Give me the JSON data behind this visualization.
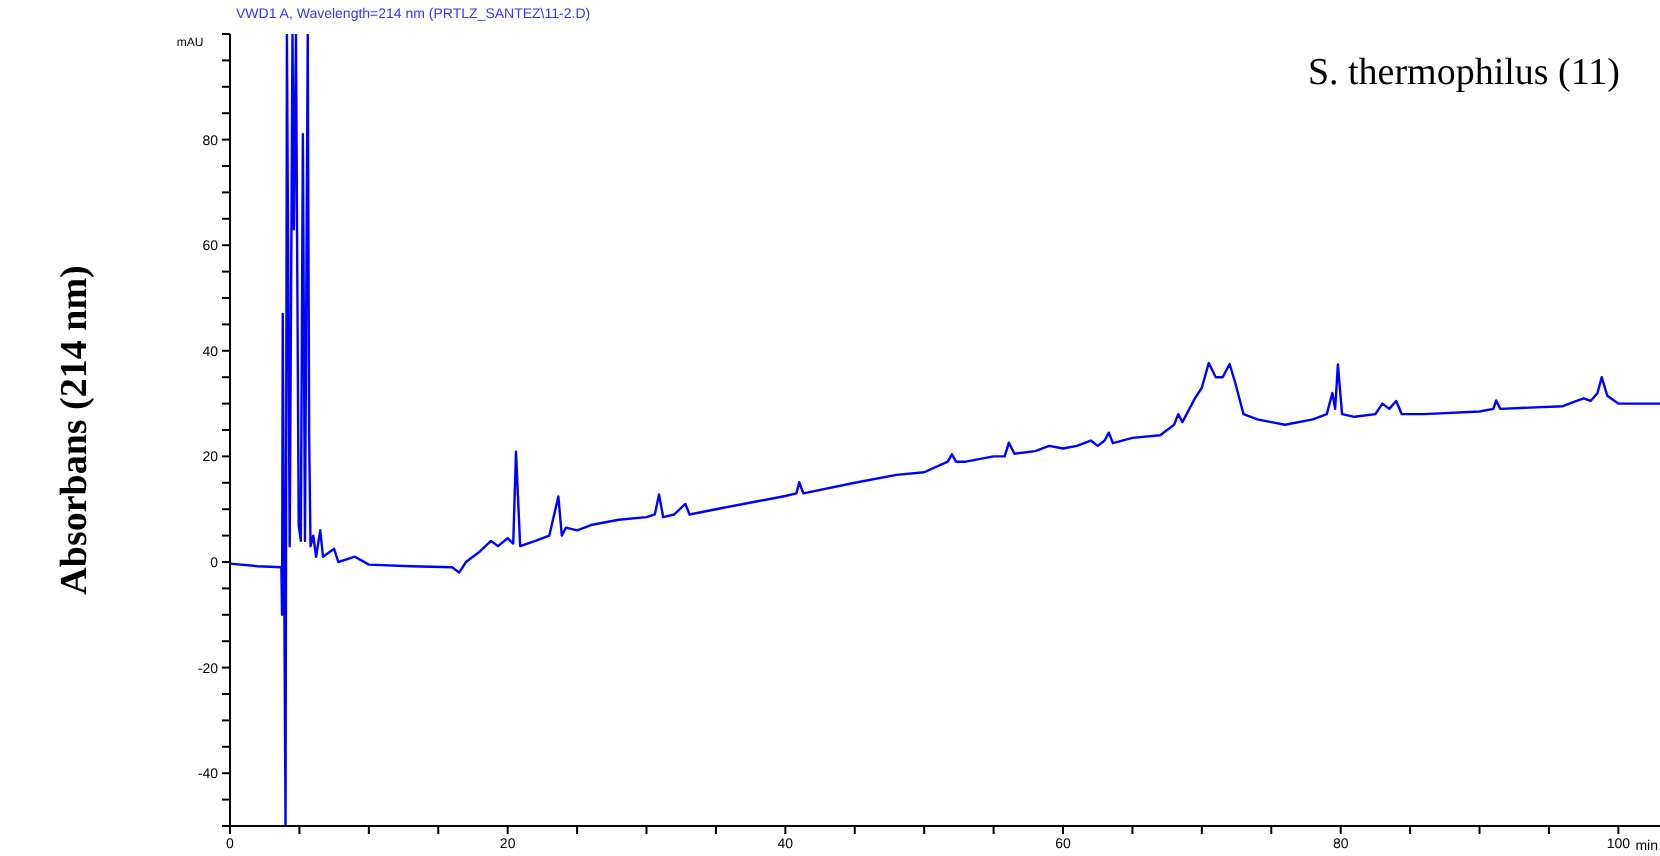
{
  "chart_data": {
    "type": "line",
    "title": "S. thermophilus (11)",
    "xlabel": "min",
    "ylabel": "Absorbans (214 nm)",
    "annotations": [
      "VWD1 A, Wavelength=214 nm (PRTLZ_SANTEZ\\11-2.D)",
      "mAU"
    ],
    "x": [
      0,
      2,
      3.7,
      3.75,
      3.8,
      3.85,
      3.9,
      4.0,
      4.1,
      4.3,
      4.5,
      4.6,
      4.75,
      4.95,
      5.1,
      5.25,
      5.4,
      5.6,
      5.7,
      5.8,
      6.0,
      6.2,
      6.5,
      6.7,
      7.5,
      7.8,
      9,
      10,
      13,
      16,
      16.5,
      17,
      18,
      18.8,
      19.3,
      20,
      20.4,
      20.6,
      20.9,
      22,
      23,
      23.65,
      23.9,
      24.2,
      25,
      26,
      28,
      30,
      30.6,
      30.9,
      31.2,
      32,
      32.8,
      33.1,
      35,
      38,
      40,
      40.8,
      41,
      41.3,
      45,
      48,
      50,
      51.7,
      52,
      52.3,
      53,
      55,
      55.8,
      56.1,
      56.5,
      58,
      59,
      60,
      61,
      62,
      62.5,
      63,
      63.3,
      63.6,
      65,
      67,
      68,
      68.3,
      68.6,
      69.5,
      70,
      70.5,
      71,
      71.5,
      72,
      72.4,
      73,
      74,
      75,
      76,
      78,
      79,
      79.4,
      79.6,
      79.8,
      80.1,
      81,
      82.5,
      83,
      83.5,
      84,
      84.4,
      86,
      90,
      91,
      91.2,
      91.5,
      96,
      97,
      97.5,
      98,
      98.5,
      98.8,
      99.2,
      100,
      103
    ],
    "series": [
      {
        "color": "#0000ff",
        "values": [
          -0.3,
          -0.8,
          -1,
          -10,
          47,
          22,
          -1,
          -50,
          100,
          3,
          100,
          63,
          100,
          7,
          4,
          81,
          4,
          100,
          24,
          3,
          5,
          1,
          6,
          1,
          2.5,
          0,
          1,
          -0.5,
          -0.8,
          -1,
          -2,
          0,
          2,
          4,
          3,
          4.5,
          3.5,
          20.9,
          3,
          4,
          5,
          12.4,
          5,
          6.5,
          6,
          7,
          8,
          8.5,
          9,
          12.8,
          8.5,
          9,
          11,
          9,
          10,
          11.5,
          12.5,
          13,
          15.1,
          13,
          15,
          16.5,
          17,
          19,
          20.4,
          19,
          19,
          20,
          20,
          22.6,
          20.5,
          21,
          22,
          21.5,
          22,
          23,
          22,
          23,
          24.5,
          22.5,
          23.5,
          24,
          26,
          28,
          26.5,
          31,
          33,
          37.7,
          35,
          35,
          37.5,
          34,
          28,
          27,
          26.5,
          26,
          27,
          28,
          32,
          29,
          37.4,
          28,
          27.5,
          28,
          30,
          29,
          30.5,
          28,
          28,
          28.5,
          29,
          30.6,
          29,
          29.5,
          30.5,
          31,
          30.5,
          32,
          35,
          31.5,
          30,
          30
        ]
      }
    ],
    "xlim": [
      0,
      103
    ],
    "xticks": [
      0,
      {
        "value": 5,
        "label": null
      },
      {
        "value": 10,
        "label": null
      },
      {
        "value": 15,
        "label": null
      },
      20,
      {
        "value": 25,
        "label": null
      },
      {
        "value": 30,
        "label": null
      },
      {
        "value": 35,
        "label": null
      },
      40,
      {
        "value": 45,
        "label": null
      },
      {
        "value": 50,
        "label": null
      },
      {
        "value": 55,
        "label": null
      },
      60,
      {
        "value": 65,
        "label": null
      },
      {
        "value": 70,
        "label": null
      },
      {
        "value": 75,
        "label": null
      },
      80,
      {
        "value": 85,
        "label": null
      },
      {
        "value": 90,
        "label": null
      },
      {
        "value": 95,
        "label": null
      },
      100
    ],
    "ylim": [
      -50,
      100
    ],
    "yticks": [
      {
        "value": -50,
        "label": null
      },
      {
        "value": -45,
        "label": null
      },
      -40,
      {
        "value": -35,
        "label": null
      },
      {
        "value": -30,
        "label": null
      },
      {
        "value": -25,
        "label": null
      },
      -20,
      {
        "value": -15,
        "label": null
      },
      {
        "value": -10,
        "label": null
      },
      {
        "value": -5,
        "label": null
      },
      0,
      {
        "value": 5,
        "label": null
      },
      {
        "value": 10,
        "label": null
      },
      {
        "value": 15,
        "label": null
      },
      20,
      {
        "value": 25,
        "label": null
      },
      {
        "value": 30,
        "label": null
      },
      {
        "value": 35,
        "label": null
      },
      40,
      {
        "value": 45,
        "label": null
      },
      {
        "value": 50,
        "label": null
      },
      {
        "value": 55,
        "label": null
      },
      60,
      {
        "value": 65,
        "label": null
      },
      {
        "value": 70,
        "label": null
      },
      {
        "value": 75,
        "label": null
      },
      80,
      {
        "value": 85,
        "label": null
      },
      {
        "value": 90,
        "label": null
      },
      {
        "value": 95,
        "label": null
      },
      {
        "value": 100,
        "label": null
      }
    ]
  }
}
